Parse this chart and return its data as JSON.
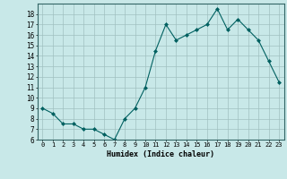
{
  "x": [
    0,
    1,
    2,
    3,
    4,
    5,
    6,
    7,
    8,
    9,
    10,
    11,
    12,
    13,
    14,
    15,
    16,
    17,
    18,
    19,
    20,
    21,
    22,
    23
  ],
  "y": [
    9.0,
    8.5,
    7.5,
    7.5,
    7.0,
    7.0,
    6.5,
    6.0,
    8.0,
    9.0,
    11.0,
    14.5,
    17.0,
    15.5,
    16.0,
    16.5,
    17.0,
    18.5,
    16.5,
    17.5,
    16.5,
    15.5,
    13.5,
    11.5
  ],
  "xlabel": "Humidex (Indice chaleur)",
  "bg_color": "#c8e8e8",
  "grid_color": "#a0c0c0",
  "line_color": "#006060",
  "marker_color": "#006060",
  "xlim": [
    -0.5,
    23.5
  ],
  "ylim": [
    6,
    19
  ],
  "yticks": [
    6,
    7,
    8,
    9,
    10,
    11,
    12,
    13,
    14,
    15,
    16,
    17,
    18
  ],
  "xticks": [
    0,
    1,
    2,
    3,
    4,
    5,
    6,
    7,
    8,
    9,
    10,
    11,
    12,
    13,
    14,
    15,
    16,
    17,
    18,
    19,
    20,
    21,
    22,
    23
  ]
}
